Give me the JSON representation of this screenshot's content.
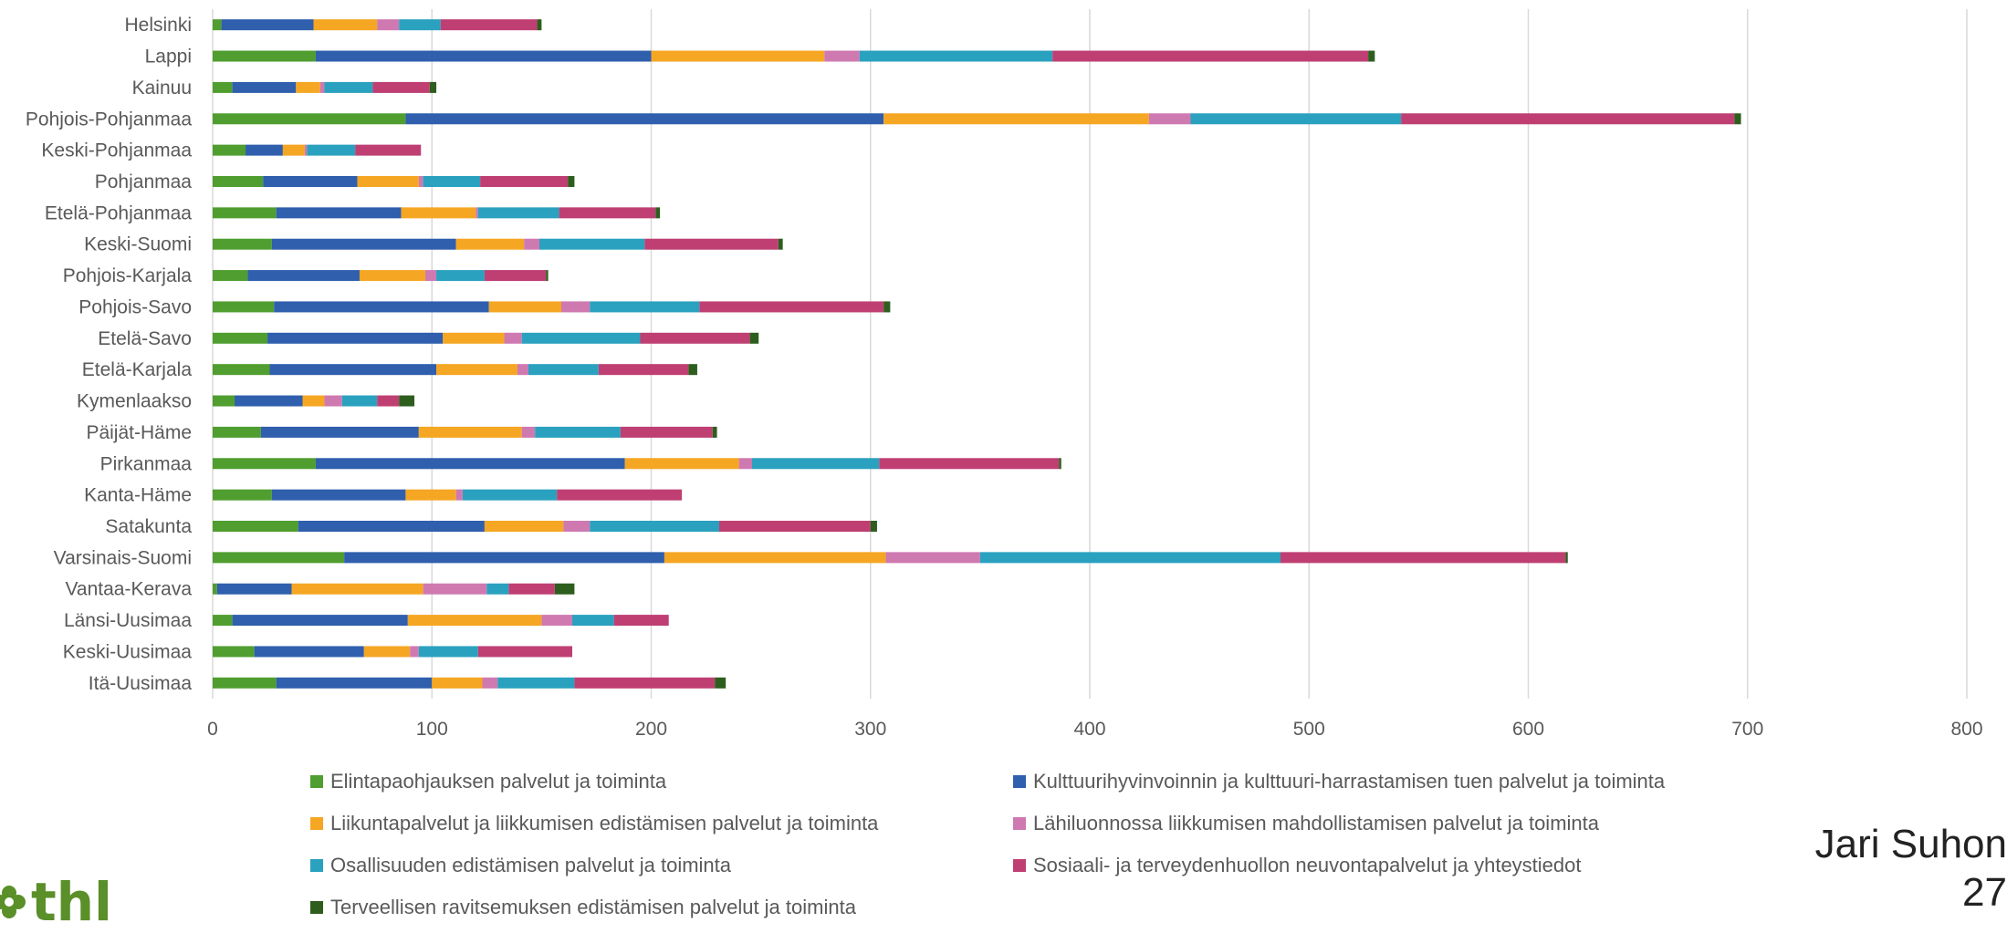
{
  "chart_data": {
    "type": "bar",
    "orientation": "horizontal",
    "stacked": true,
    "xlim": [
      0,
      800
    ],
    "xticks": [
      0,
      100,
      200,
      300,
      400,
      500,
      600,
      700,
      800
    ],
    "grid": "vertical",
    "legend_position": "bottom",
    "categories": [
      "Helsinki",
      "Lappi",
      "Kainuu",
      "Pohjois-Pohjanmaa",
      "Keski-Pohjanmaa",
      "Pohjanmaa",
      "Etelä-Pohjanmaa",
      "Keski-Suomi",
      "Pohjois-Karjala",
      "Pohjois-Savo",
      "Etelä-Savo",
      "Etelä-Karjala",
      "Kymenlaakso",
      "Päijät-Häme",
      "Pirkanmaa",
      "Kanta-Häme",
      "Satakunta",
      "Varsinais-Suomi",
      "Vantaa-Kerava",
      "Länsi-Uusimaa",
      "Keski-Uusimaa",
      "Itä-Uusimaa"
    ],
    "series": [
      {
        "name": "Elintapaohjauksen palvelut ja toiminta",
        "color": "#4f9e2f",
        "values": [
          4,
          47,
          9,
          88,
          15,
          23,
          29,
          27,
          16,
          28,
          25,
          26,
          10,
          22,
          47,
          27,
          39,
          60,
          2,
          9,
          19,
          29
        ]
      },
      {
        "name": "Kulttuurihyvinvoinnin ja kulttuuri-harrastamisen tuen palvelut ja toiminta",
        "color": "#2f5fad",
        "values": [
          42,
          153,
          29,
          218,
          17,
          43,
          57,
          84,
          51,
          98,
          80,
          76,
          31,
          72,
          141,
          61,
          85,
          146,
          34,
          80,
          50,
          71
        ]
      },
      {
        "name": "Liikuntapalvelut ja liikkumisen edistämisen palvelut ja toiminta",
        "color": "#f5a623",
        "values": [
          29,
          79,
          11,
          121,
          10,
          28,
          34,
          31,
          30,
          33,
          28,
          37,
          10,
          47,
          52,
          23,
          36,
          101,
          60,
          61,
          21,
          23
        ]
      },
      {
        "name": "Lähiluonnossa liikkumisen mahdollistamisen palvelut ja toiminta",
        "color": "#cf79b1",
        "values": [
          10,
          16,
          2,
          19,
          1,
          2,
          1,
          7,
          5,
          13,
          8,
          5,
          8,
          6,
          6,
          3,
          12,
          43,
          29,
          14,
          4,
          7
        ]
      },
      {
        "name": "Osallisuuden edistämisen palvelut ja toiminta",
        "color": "#2aa1bf",
        "values": [
          19,
          88,
          22,
          96,
          22,
          26,
          37,
          48,
          22,
          50,
          54,
          32,
          16,
          39,
          58,
          43,
          59,
          137,
          10,
          19,
          27,
          35
        ]
      },
      {
        "name": "Sosiaali- ja terveydenhuollon neuvontapalvelut ja yhteystiedot",
        "color": "#bf3f73",
        "values": [
          44,
          144,
          26,
          152,
          30,
          40,
          44,
          61,
          28,
          84,
          50,
          41,
          10,
          42,
          82,
          57,
          69,
          130,
          21,
          25,
          43,
          64
        ]
      },
      {
        "name": "Terveellisen ravitsemuksen edistämisen palvelut ja toiminta",
        "color": "#2e5e1e",
        "values": [
          2,
          3,
          3,
          3,
          0,
          3,
          2,
          2,
          1,
          3,
          4,
          4,
          7,
          2,
          1,
          0,
          3,
          1,
          9,
          0,
          0,
          5
        ]
      }
    ]
  },
  "author": {
    "line1": "Jari Suhon",
    "line2": "27"
  },
  "logo": {
    "text": "thl"
  }
}
